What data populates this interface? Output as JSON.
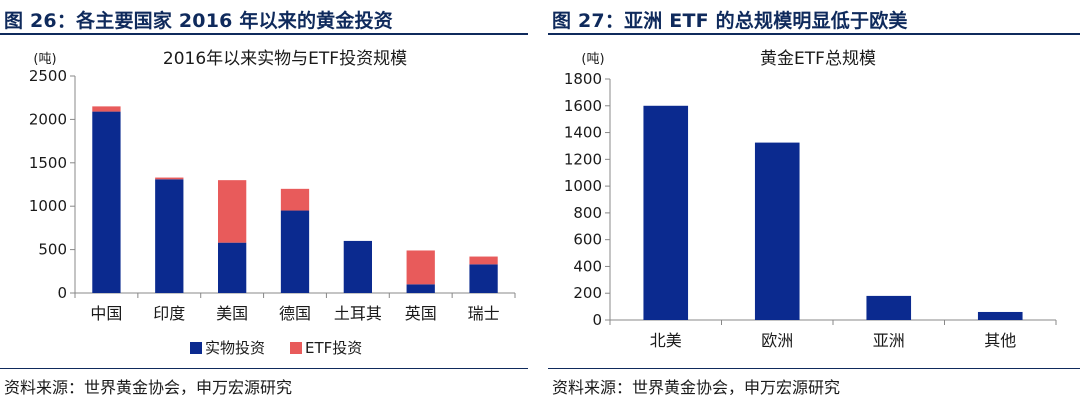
{
  "left": {
    "figure_title": "图 26：各主要国家 2016 年以来的黄金投资",
    "source": "资料来源：世界黄金协会，申万宏源研究",
    "chart_data": {
      "type": "bar",
      "stacked": true,
      "title": "2016年以来实物与ETF投资规模",
      "unit": "(吨)",
      "categories": [
        "中国",
        "印度",
        "美国",
        "德国",
        "土耳其",
        "英国",
        "瑞士"
      ],
      "series": [
        {
          "name": "实物投资",
          "color": "#0b2a8f",
          "values": [
            2090,
            1310,
            580,
            950,
            600,
            100,
            330
          ]
        },
        {
          "name": "ETF投资",
          "color": "#e85b5b",
          "values": [
            60,
            20,
            720,
            250,
            0,
            390,
            90
          ]
        }
      ],
      "ylim": [
        0,
        2500
      ],
      "yticks": [
        0,
        500,
        1000,
        1500,
        2000,
        2500
      ],
      "grid": false,
      "legend": "bottom"
    }
  },
  "right": {
    "figure_title": "图 27：亚洲 ETF 的总规模明显低于欧美",
    "source": "资料来源：世界黄金协会，申万宏源研究",
    "chart_data": {
      "type": "bar",
      "title": "黄金ETF总规模",
      "unit": "(吨)",
      "categories": [
        "北美",
        "欧洲",
        "亚洲",
        "其他"
      ],
      "values": [
        1600,
        1325,
        180,
        60
      ],
      "color": "#0b2a8f",
      "ylim": [
        0,
        1800
      ],
      "yticks": [
        0,
        200,
        400,
        600,
        800,
        1000,
        1200,
        1400,
        1600,
        1800
      ],
      "grid": false,
      "legend": "none"
    }
  }
}
